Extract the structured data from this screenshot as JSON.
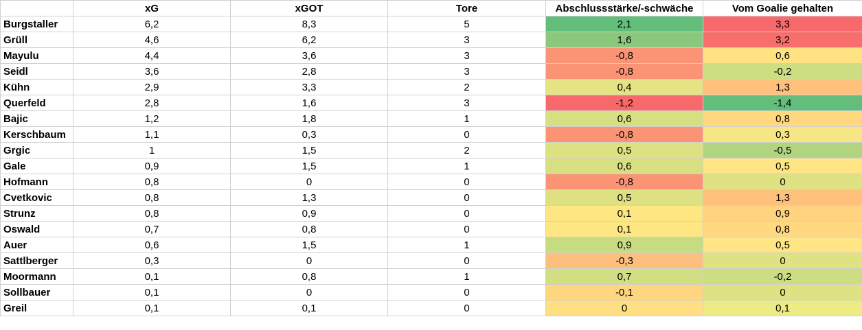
{
  "headers": [
    "",
    "xG",
    "xGOT",
    "Tore",
    "Abschlussstärke/-schwäche",
    "Vom Goalie gehalten"
  ],
  "rows": [
    {
      "name": "Burgstaller",
      "xg": "6,2",
      "xgot": "8,3",
      "tore": "5",
      "abschluss": "2,1",
      "abschluss_color": "#63be7b",
      "goalie": "3,3",
      "goalie_color": "#f8696b"
    },
    {
      "name": "Grüll",
      "xg": "4,6",
      "xgot": "6,2",
      "tore": "3",
      "abschluss": "1,6",
      "abschluss_color": "#8ac97d",
      "goalie": "3,2",
      "goalie_color": "#f86e6c"
    },
    {
      "name": "Mayulu",
      "xg": "4,4",
      "xgot": "3,6",
      "tore": "3",
      "abschluss": "-0,8",
      "abschluss_color": "#fb9474",
      "goalie": "0,6",
      "goalie_color": "#ffe383"
    },
    {
      "name": "Seidl",
      "xg": "3,6",
      "xgot": "2,8",
      "tore": "3",
      "abschluss": "-0,8",
      "abschluss_color": "#fb9474",
      "goalie": "-0,2",
      "goalie_color": "#cddd82"
    },
    {
      "name": "Kühn",
      "xg": "2,9",
      "xgot": "3,3",
      "tore": "2",
      "abschluss": "0,4",
      "abschluss_color": "#e5e383",
      "goalie": "1,3",
      "goalie_color": "#ffc07c"
    },
    {
      "name": "Querfeld",
      "xg": "2,8",
      "xgot": "1,6",
      "tore": "3",
      "abschluss": "-1,2",
      "abschluss_color": "#f8696b",
      "goalie": "-1,4",
      "goalie_color": "#63be7b"
    },
    {
      "name": "Bajic",
      "xg": "1,2",
      "xgot": "1,8",
      "tore": "1",
      "abschluss": "0,6",
      "abschluss_color": "#d7df82",
      "goalie": "0,8",
      "goalie_color": "#ffd880"
    },
    {
      "name": "Kerschbaum",
      "xg": "1,1",
      "xgot": "0,3",
      "tore": "0",
      "abschluss": "-0,8",
      "abschluss_color": "#fb9474",
      "goalie": "0,3",
      "goalie_color": "#f7e784"
    },
    {
      "name": "Grgic",
      "xg": "1",
      "xgot": "1,5",
      "tore": "2",
      "abschluss": "0,5",
      "abschluss_color": "#dee182",
      "goalie": "-0,5",
      "goalie_color": "#b0d480"
    },
    {
      "name": "Gale",
      "xg": "0,9",
      "xgot": "1,5",
      "tore": "1",
      "abschluss": "0,6",
      "abschluss_color": "#d7df82",
      "goalie": "0,5",
      "goalie_color": "#ffe583"
    },
    {
      "name": "Hofmann",
      "xg": "0,8",
      "xgot": "0",
      "tore": "0",
      "abschluss": "-0,8",
      "abschluss_color": "#fb9474",
      "goalie": "0",
      "goalie_color": "#dfe283"
    },
    {
      "name": "Cvetkovic",
      "xg": "0,8",
      "xgot": "1,3",
      "tore": "0",
      "abschluss": "0,5",
      "abschluss_color": "#dee182",
      "goalie": "1,3",
      "goalie_color": "#ffc07c"
    },
    {
      "name": "Strunz",
      "xg": "0,8",
      "xgot": "0,9",
      "tore": "0",
      "abschluss": "0,1",
      "abschluss_color": "#fee683",
      "goalie": "0,9",
      "goalie_color": "#ffd37f"
    },
    {
      "name": "Oswald",
      "xg": "0,7",
      "xgot": "0,8",
      "tore": "0",
      "abschluss": "0,1",
      "abschluss_color": "#fee683",
      "goalie": "0,8",
      "goalie_color": "#ffd880"
    },
    {
      "name": "Auer",
      "xg": "0,6",
      "xgot": "1,5",
      "tore": "1",
      "abschluss": "0,9",
      "abschluss_color": "#c7db81",
      "goalie": "0,5",
      "goalie_color": "#ffe583"
    },
    {
      "name": "Sattlberger",
      "xg": "0,3",
      "xgot": "0",
      "tore": "0",
      "abschluss": "-0,3",
      "abschluss_color": "#fdc07c",
      "goalie": "0",
      "goalie_color": "#dfe283"
    },
    {
      "name": "Moormann",
      "xg": "0,1",
      "xgot": "0,8",
      "tore": "1",
      "abschluss": "0,7",
      "abschluss_color": "#d2de82",
      "goalie": "-0,2",
      "goalie_color": "#cddd82"
    },
    {
      "name": "Sollbauer",
      "xg": "0,1",
      "xgot": "0",
      "tore": "0",
      "abschluss": "-0,1",
      "abschluss_color": "#fed680",
      "goalie": "0",
      "goalie_color": "#dfe283"
    },
    {
      "name": "Greil",
      "xg": "0,1",
      "xgot": "0,1",
      "tore": "0",
      "abschluss": "0",
      "abschluss_color": "#ffdf82",
      "goalie": "0,1",
      "goalie_color": "#edeb84"
    }
  ]
}
